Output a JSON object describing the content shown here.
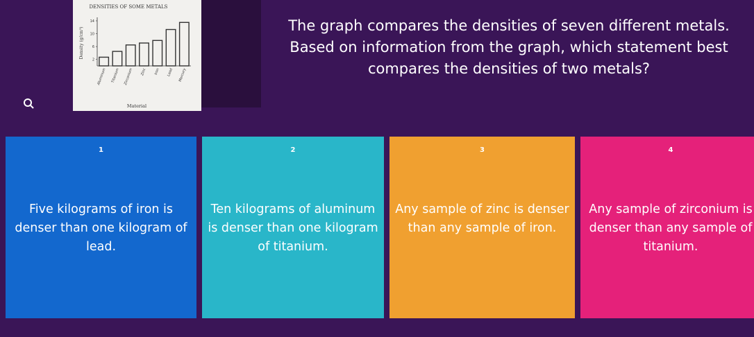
{
  "figure": {
    "title": "DENSITIES OF SOME METALS",
    "y_label": "Density (g/cm³)",
    "x_label": "Material",
    "categories": [
      "Aluminum",
      "Titanium",
      "Zirconium",
      "Zinc",
      "Iron",
      "Lead",
      "Mercury"
    ],
    "values": [
      2.7,
      4.5,
      6.5,
      7.1,
      7.9,
      11.3,
      13.5
    ],
    "ylim": [
      0,
      14
    ],
    "yticks": [
      2,
      6,
      10,
      14
    ]
  },
  "question": {
    "lines": [
      "The graph compares the densities of seven different metals.",
      "Based on information from the graph, which statement best",
      "compares the densities of two metals?"
    ]
  },
  "answers": [
    {
      "number": "1",
      "text": "Five kilograms of iron is denser than one kilogram of lead."
    },
    {
      "number": "2",
      "text": "Ten kilograms of aluminum is denser than one kilogram of titanium."
    },
    {
      "number": "3",
      "text": "Any sample of zinc is denser than any sample of iron."
    },
    {
      "number": "4",
      "text": "Any sample of zirconium is denser than any sample of titanium."
    }
  ]
}
